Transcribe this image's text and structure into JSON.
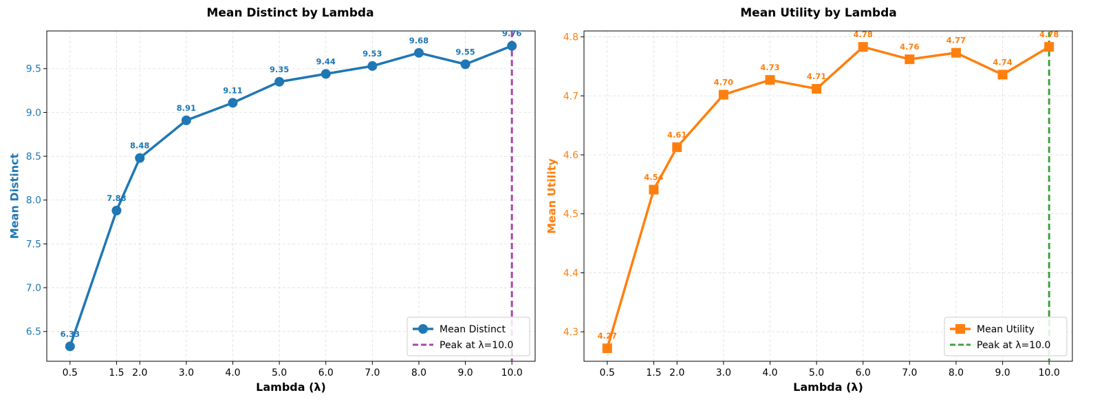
{
  "chart_data": [
    {
      "type": "line",
      "title": "Mean Distinct by Lambda",
      "xlabel": "Lambda (λ)",
      "ylabel": "Mean Distinct",
      "color": "#1f77b4",
      "marker": "circle",
      "x": [
        0.5,
        1.5,
        2.0,
        3.0,
        4.0,
        5.0,
        6.0,
        7.0,
        8.0,
        9.0,
        10.0
      ],
      "xtick_labels": [
        "0.5",
        "1.5",
        "2.0",
        "3.0",
        "4.0",
        "5.0",
        "6.0",
        "7.0",
        "8.0",
        "9.0",
        "10.0"
      ],
      "values": [
        6.33,
        7.88,
        8.48,
        8.91,
        9.11,
        9.35,
        9.44,
        9.53,
        9.68,
        9.55,
        9.76
      ],
      "value_labels": [
        "6.33",
        "7.88",
        "8.48",
        "8.91",
        "9.11",
        "9.35",
        "9.44",
        "9.53",
        "9.68",
        "9.55",
        "9.76"
      ],
      "yticks": [
        6.5,
        7.0,
        7.5,
        8.0,
        8.5,
        9.0,
        9.5
      ],
      "ytick_labels": [
        "6.5",
        "7.0",
        "7.5",
        "8.0",
        "8.5",
        "9.0",
        "9.5"
      ],
      "xlim": [
        0.0,
        10.5
      ],
      "ylim": [
        6.16,
        9.93
      ],
      "grid": true,
      "peak": {
        "x": 10.0,
        "color": "#a846b0"
      },
      "legend": {
        "position": "lower-right",
        "series_label": "Mean Distinct",
        "peak_label": "Peak at λ=10.0"
      }
    },
    {
      "type": "line",
      "title": "Mean Utility by Lambda",
      "xlabel": "Lambda (λ)",
      "ylabel": "Mean Utility",
      "color": "#ff7f0e",
      "marker": "square",
      "x": [
        0.5,
        1.5,
        2.0,
        3.0,
        4.0,
        5.0,
        6.0,
        7.0,
        8.0,
        9.0,
        10.0
      ],
      "xtick_labels": [
        "0.5",
        "1.5",
        "2.0",
        "3.0",
        "4.0",
        "5.0",
        "6.0",
        "7.0",
        "8.0",
        "9.0",
        "10.0"
      ],
      "values": [
        4.272,
        4.541,
        4.613,
        4.702,
        4.727,
        4.712,
        4.783,
        4.762,
        4.773,
        4.736,
        4.783
      ],
      "value_labels": [
        "4.27",
        "4.54",
        "4.61",
        "4.70",
        "4.73",
        "4.71",
        "4.78",
        "4.76",
        "4.77",
        "4.74",
        "4.78"
      ],
      "yticks": [
        4.3,
        4.4,
        4.5,
        4.6,
        4.7,
        4.8
      ],
      "ytick_labels": [
        "4.3",
        "4.4",
        "4.5",
        "4.6",
        "4.7",
        "4.8"
      ],
      "xlim": [
        0.0,
        10.5
      ],
      "ylim": [
        4.25,
        4.81
      ],
      "grid": true,
      "peak": {
        "x": 10.0,
        "color": "#3ca23c"
      },
      "legend": {
        "position": "lower-right",
        "series_label": "Mean Utility",
        "peak_label": "Peak at λ=10.0"
      }
    }
  ]
}
